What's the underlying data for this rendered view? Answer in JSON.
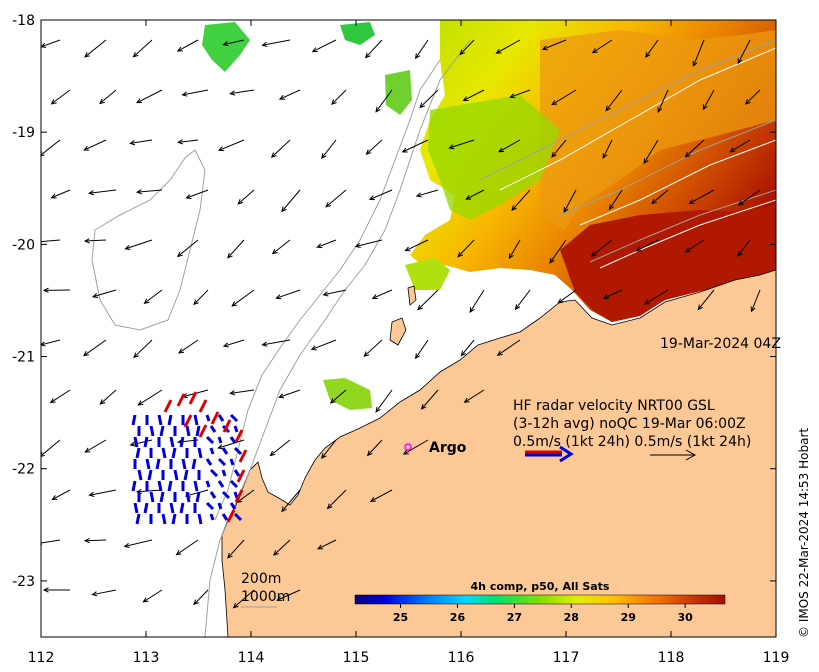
{
  "map": {
    "lon_range": [
      112,
      119
    ],
    "lat_range": [
      -23.5,
      -18
    ],
    "x_ticks": [
      "112",
      "113",
      "114",
      "115",
      "116",
      "117",
      "118",
      "119"
    ],
    "y_ticks": [
      "-18",
      "-19",
      "-20",
      "-21",
      "-22",
      "-23"
    ],
    "date_label": "19-Mar-2024 04Z",
    "hf_radar": {
      "line1": "HF radar velocity  NRT00 GSL",
      "line2": "(3-12h avg) noQC 19-Mar 06:00Z",
      "line3": "0.5m/s (1kt 24h)   0.5m/s (1kt 24h)",
      "ref_arrow_red": "#e00000",
      "ref_arrow_blue": "#0000dd"
    },
    "argo": {
      "label": "Argo",
      "lon": 115.45,
      "lat": -21.85,
      "color": "#ff00ff"
    },
    "depth_labels": [
      "200m",
      "1000m"
    ],
    "colorbar": {
      "title": "4h comp, p50, All Sats",
      "ticks": [
        "25",
        "26",
        "27",
        "28",
        "29",
        "30"
      ],
      "range": [
        24.2,
        30.7
      ]
    },
    "colors": {
      "land": "#fbc896",
      "coast": "#000000",
      "arrows": "#000000",
      "isobath": "#a0a0a0"
    },
    "credit": "© IMOS 22-Mar-2024 14:53 Hobart"
  }
}
